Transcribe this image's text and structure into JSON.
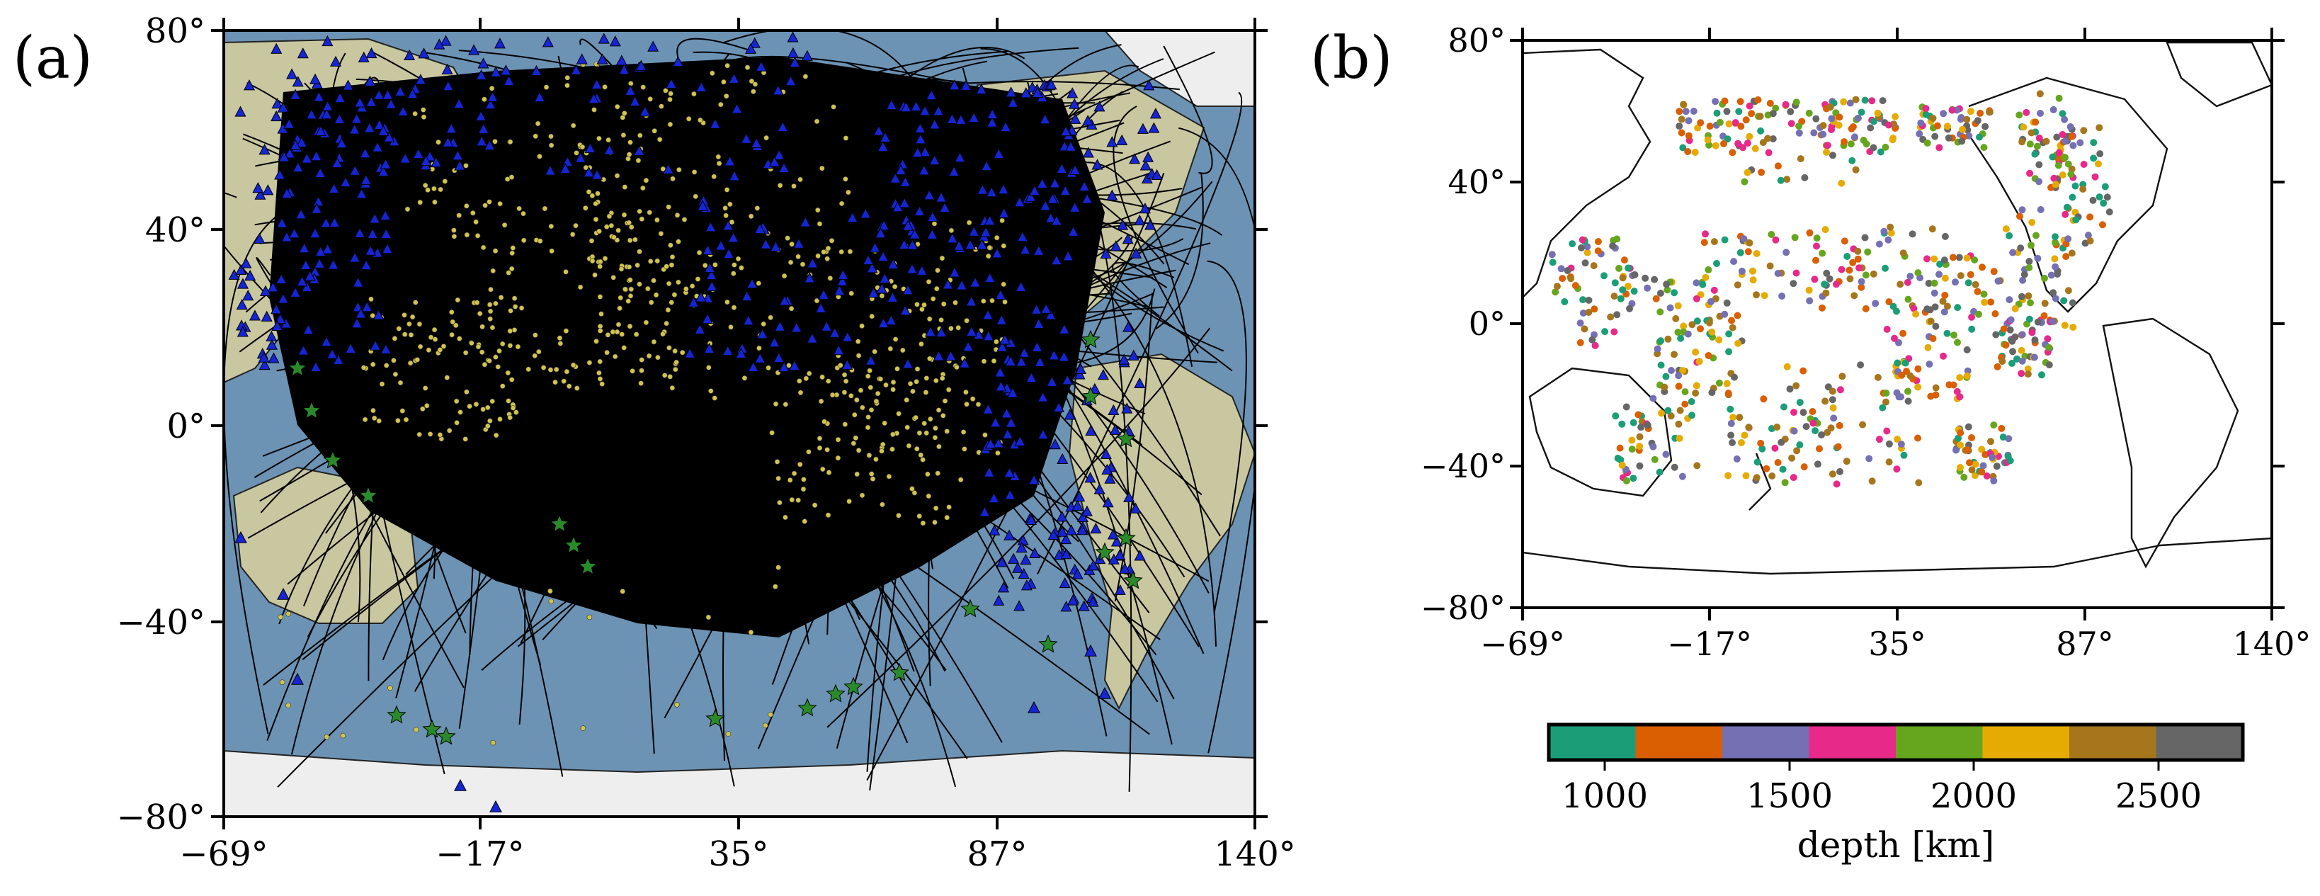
{
  "panel_a": {
    "label": "(a)",
    "x_ticks": [
      "−69°",
      "−17°",
      "35°",
      "87°",
      "140°"
    ],
    "y_ticks": [
      "80°",
      "40°",
      "0°",
      "−40°",
      "−80°"
    ],
    "colors": {
      "ocean": "#6c93b4",
      "land": "#c9c7a0",
      "ice": "#eeeeee",
      "paths": "#000000",
      "stations": "#1525d4",
      "bounce_points": "#d2c44c",
      "sources": "#2a8a2a"
    },
    "icons": {
      "stations": "blue-triangle-icon",
      "bounce_points": "yellow-dot-icon",
      "sources": "green-star-icon"
    }
  },
  "panel_b": {
    "label": "(b)",
    "x_ticks": [
      "−69°",
      "−17°",
      "35°",
      "87°",
      "140°"
    ],
    "y_ticks": [
      "80°",
      "40°",
      "0°",
      "−40°",
      "−80°"
    ],
    "colorbar": {
      "label": "depth [km]",
      "ticks": [
        "1000",
        "1500",
        "2000",
        "2500"
      ],
      "colors": [
        "#1b9e77",
        "#d95f02",
        "#7570b3",
        "#e7298a",
        "#66a61e",
        "#e6ab02",
        "#a6761d",
        "#666666"
      ]
    }
  }
}
